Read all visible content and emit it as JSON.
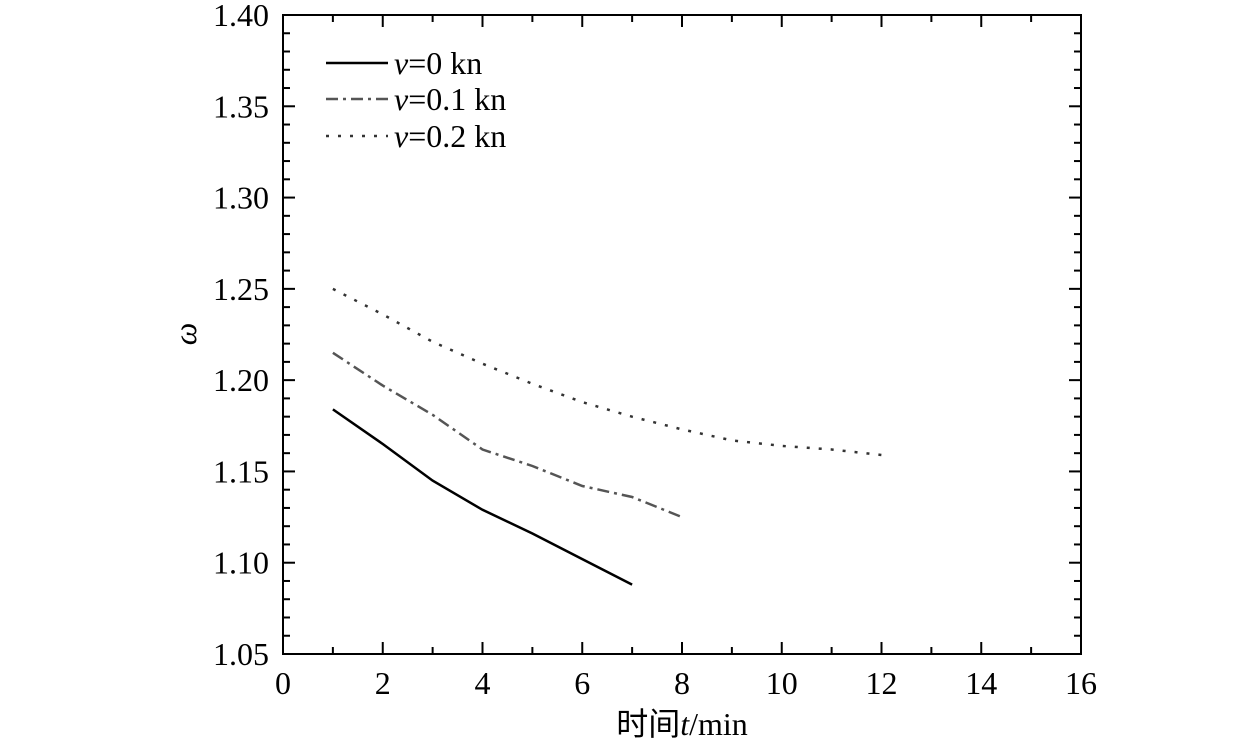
{
  "chart_data": {
    "type": "line",
    "title": "",
    "xlabel_prefix": "时间",
    "xlabel_var": "t",
    "xlabel_unit": "/min",
    "ylabel": "ω",
    "xlim": [
      0,
      16
    ],
    "ylim": [
      1.05,
      1.4
    ],
    "xticks": [
      0,
      2,
      4,
      6,
      8,
      10,
      12,
      14,
      16
    ],
    "yticks": [
      1.05,
      1.1,
      1.15,
      1.2,
      1.25,
      1.3,
      1.35,
      1.4
    ],
    "xtick_labels": [
      "0",
      "2",
      "4",
      "6",
      "8",
      "10",
      "12",
      "14",
      "16"
    ],
    "ytick_labels": [
      "1.05",
      "1.10",
      "1.15",
      "1.20",
      "1.25",
      "1.30",
      "1.35",
      "1.40"
    ],
    "grid": false,
    "legend_position": "top-left",
    "series": [
      {
        "name": "v=0 kn",
        "legend_var": "v",
        "legend_rest": "=0 kn",
        "style": "solid",
        "color": "#000000",
        "x": [
          1,
          2,
          3,
          4,
          5,
          6,
          7
        ],
        "y": [
          1.184,
          1.165,
          1.145,
          1.129,
          1.116,
          1.102,
          1.088
        ]
      },
      {
        "name": "v=0.1 kn",
        "legend_var": "v",
        "legend_rest": "=0.1 kn",
        "style": "dashdot",
        "color": "#555555",
        "x": [
          1,
          2,
          3,
          4,
          5,
          6,
          7,
          8
        ],
        "y": [
          1.215,
          1.197,
          1.181,
          1.162,
          1.153,
          1.142,
          1.136,
          1.125
        ]
      },
      {
        "name": "v=0.2 kn",
        "legend_var": "v",
        "legend_rest": "=0.2 kn",
        "style": "dotted",
        "color": "#333333",
        "x": [
          1,
          2,
          3,
          4,
          5,
          6,
          7,
          8,
          9,
          10,
          11,
          12
        ],
        "y": [
          1.25,
          1.236,
          1.221,
          1.209,
          1.198,
          1.188,
          1.18,
          1.173,
          1.167,
          1.164,
          1.162,
          1.159
        ]
      }
    ]
  }
}
